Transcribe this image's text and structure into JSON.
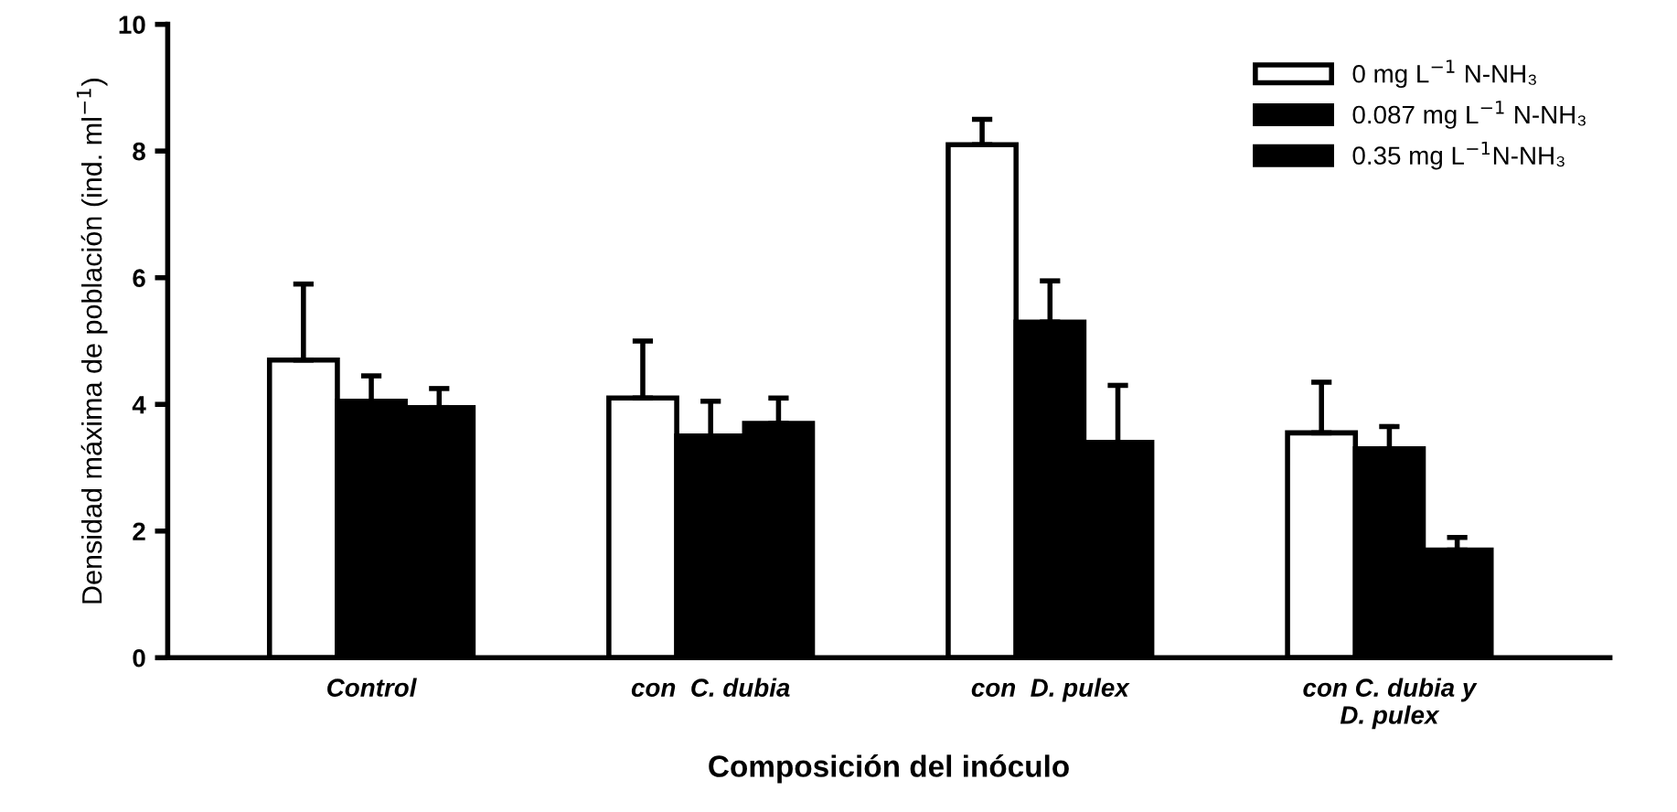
{
  "chart_data": {
    "type": "bar",
    "xlabel": "Composición del inóculo",
    "ylabel": "Densidad máxima de población (ind. ml$^{−1}$)",
    "categories": [
      "Control",
      "con  C. dubia",
      "con  D. pulex",
      "con C. dubia y\nD. pulex"
    ],
    "series": [
      {
        "name": "0 mg L$^{−1}$ N-NH₃",
        "color": "#ffffff",
        "values": [
          4.7,
          4.1,
          8.1,
          3.55
        ],
        "errors": [
          [
            4.7,
            5.9
          ],
          [
            4.1,
            5.0
          ],
          [
            8.1,
            8.5
          ],
          [
            3.55,
            4.35
          ]
        ]
      },
      {
        "name": "0.087 mg L$^{−1}$ N-NH₃",
        "color": "#000000",
        "values": [
          4.05,
          3.5,
          5.3,
          3.3
        ],
        "errors": [
          [
            4.05,
            4.45
          ],
          [
            3.5,
            4.05
          ],
          [
            5.3,
            5.95
          ],
          [
            3.3,
            3.65
          ]
        ]
      },
      {
        "name": "0.35 mg L$^{−1}$N-NH₃",
        "color": "#000000",
        "values": [
          3.95,
          3.7,
          3.4,
          1.7
        ],
        "errors": [
          [
            3.95,
            4.25
          ],
          [
            3.7,
            4.1
          ],
          [
            3.4,
            4.3
          ],
          [
            1.7,
            1.9
          ]
        ]
      }
    ],
    "ylim": [
      0,
      10
    ],
    "yticks": [
      0,
      2,
      4,
      6,
      8,
      10
    ],
    "grid": false,
    "legend": "top right"
  }
}
